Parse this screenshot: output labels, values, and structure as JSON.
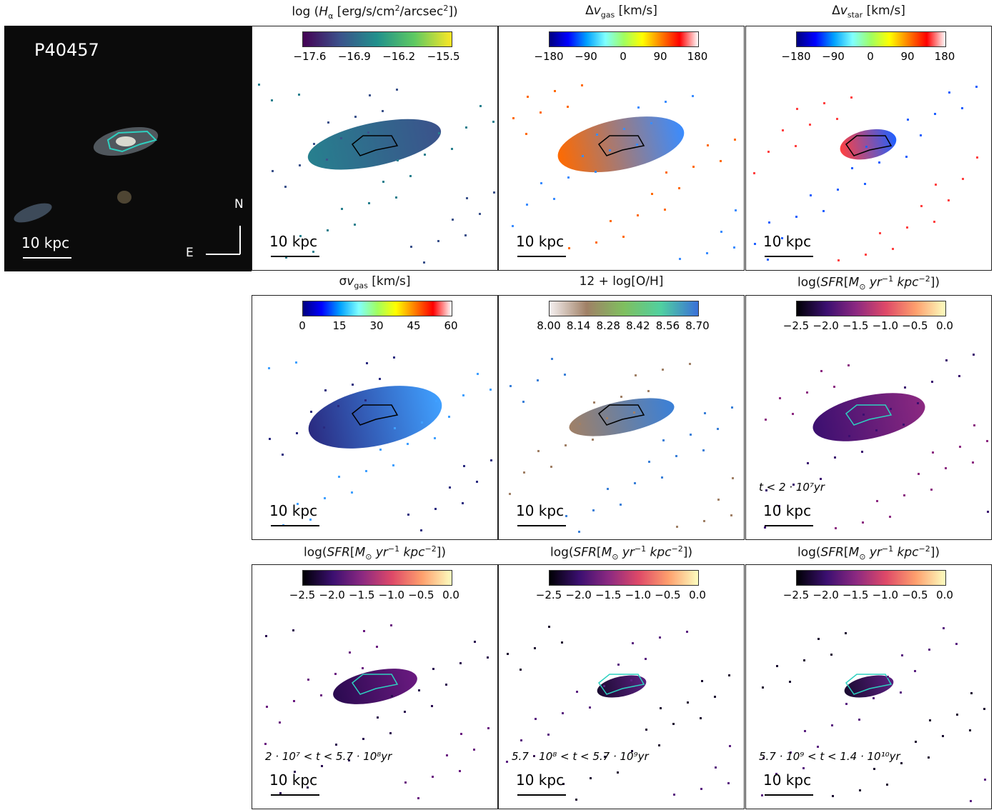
{
  "image_panel": {
    "label": "P40457",
    "scale": "10 kpc",
    "north": "N",
    "east": "E"
  },
  "map_panels": [
    {
      "title": [
        {
          "t": "log ("
        },
        {
          "t": "H",
          "it": true
        },
        {
          "t": "α",
          "sub": true
        },
        {
          "t": " [erg/s/cm"
        },
        {
          "t": "2",
          "sup": true
        },
        {
          "t": "/arcsec"
        },
        {
          "t": "2",
          "sup": true
        },
        {
          "t": "])"
        }
      ],
      "ticks": [
        "−17.6",
        "−16.9",
        "−16.2",
        "−15.5"
      ],
      "scale": "10 kpc"
    },
    {
      "title": [
        {
          "t": "Δ"
        },
        {
          "t": "v",
          "it": true
        },
        {
          "t": "gas",
          "sub": true
        },
        {
          "t": " [km/s]"
        }
      ],
      "ticks": [
        "−180",
        "−90",
        "0",
        "90",
        "180"
      ],
      "scale": "10 kpc"
    },
    {
      "title": [
        {
          "t": "Δ"
        },
        {
          "t": "v",
          "it": true
        },
        {
          "t": "star",
          "sub": true
        },
        {
          "t": " [km/s]"
        }
      ],
      "ticks": [
        "−180",
        "−90",
        "0",
        "90",
        "180"
      ],
      "scale": "10 kpc"
    },
    {
      "title": [
        {
          "t": "σ"
        },
        {
          "t": "v",
          "it": true
        },
        {
          "t": "gas",
          "sub": true
        },
        {
          "t": " [km/s]"
        }
      ],
      "ticks": [
        "0",
        "15",
        "30",
        "45",
        "60"
      ],
      "scale": "10 kpc"
    },
    {
      "title": [
        {
          "t": "12 + log[O/H]"
        }
      ],
      "ticks": [
        "8.00",
        "8.14",
        "8.28",
        "8.42",
        "8.56",
        "8.70"
      ],
      "scale": "10 kpc"
    },
    {
      "title": [
        {
          "t": "log("
        },
        {
          "t": "SFR",
          "it": true
        },
        {
          "t": "["
        },
        {
          "t": "M",
          "it": true
        },
        {
          "t": "⊙",
          "sub": true
        },
        {
          "t": " yr",
          "it": true
        },
        {
          "t": "−1",
          "sup": true
        },
        {
          "t": " kpc",
          "it": true
        },
        {
          "t": "−2",
          "sup": true
        },
        {
          "t": "])"
        }
      ],
      "ticks": [
        "−2.5",
        "−2.0",
        "−1.5",
        "−1.0",
        "−0.5",
        "0.0"
      ],
      "scale": "10 kpc",
      "note": "t < 2 · 10⁷yr"
    },
    {
      "title": [
        {
          "t": "log("
        },
        {
          "t": "SFR",
          "it": true
        },
        {
          "t": "["
        },
        {
          "t": "M",
          "it": true
        },
        {
          "t": "⊙",
          "sub": true
        },
        {
          "t": " yr",
          "it": true
        },
        {
          "t": "−1",
          "sup": true
        },
        {
          "t": " kpc",
          "it": true
        },
        {
          "t": "−2",
          "sup": true
        },
        {
          "t": "])"
        }
      ],
      "ticks": [
        "−2.5",
        "−2.0",
        "−1.5",
        "−1.0",
        "−0.5",
        "0.0"
      ],
      "scale": "10 kpc",
      "note": "2 · 10⁷ < t < 5.7 · 10⁸yr"
    },
    {
      "title": [
        {
          "t": "log("
        },
        {
          "t": "SFR",
          "it": true
        },
        {
          "t": "["
        },
        {
          "t": "M",
          "it": true
        },
        {
          "t": "⊙",
          "sub": true
        },
        {
          "t": " yr",
          "it": true
        },
        {
          "t": "−1",
          "sup": true
        },
        {
          "t": " kpc",
          "it": true
        },
        {
          "t": "−2",
          "sup": true
        },
        {
          "t": "])"
        }
      ],
      "ticks": [
        "−2.5",
        "−2.0",
        "−1.5",
        "−1.0",
        "−0.5",
        "0.0"
      ],
      "scale": "10 kpc",
      "note": "5.7 · 10⁸ < t < 5.7 · 10⁹yr"
    },
    {
      "title": [
        {
          "t": "log("
        },
        {
          "t": "SFR",
          "it": true
        },
        {
          "t": "["
        },
        {
          "t": "M",
          "it": true
        },
        {
          "t": "⊙",
          "sub": true
        },
        {
          "t": " yr",
          "it": true
        },
        {
          "t": "−1",
          "sup": true
        },
        {
          "t": " kpc",
          "it": true
        },
        {
          "t": "−2",
          "sup": true
        },
        {
          "t": "])"
        }
      ],
      "ticks": [
        "−2.5",
        "−2.0",
        "−1.5",
        "−1.0",
        "−0.5",
        "0.0"
      ],
      "scale": "10 kpc",
      "note": "5.7 · 10⁹ < t < 1.4 · 10¹⁰yr"
    }
  ]
}
